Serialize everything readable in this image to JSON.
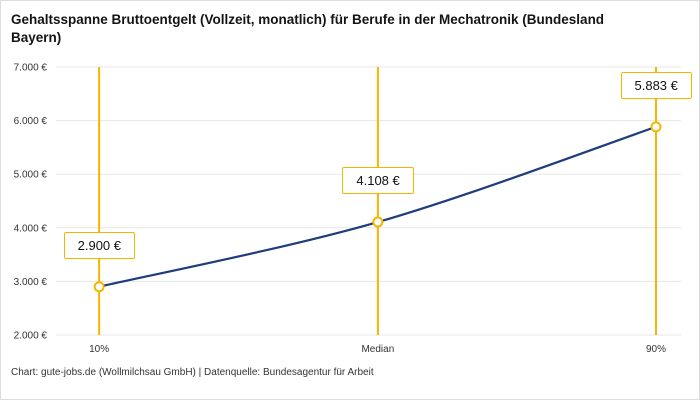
{
  "chart_data": {
    "type": "line",
    "title": "Gehaltsspanne Bruttoentgelt (Vollzeit, monatlich) für Berufe in der Mechatronik (Bundesland Bayern)",
    "categories": [
      "10%",
      "Median",
      "90%"
    ],
    "values": [
      2900,
      4108,
      5883
    ],
    "labels": [
      "2.900 €",
      "4.108 €",
      "5.883 €"
    ],
    "ylim": [
      2000,
      7000
    ],
    "ytick_step": 1000,
    "ytick_suffix": " €",
    "grid": "horizontal",
    "legend": "none",
    "xlabel": "",
    "ylabel": "",
    "colors": {
      "line": "#1F3D7A",
      "marker": "#F7B500",
      "vline": "#F7B500",
      "grid": "#E7E7E7",
      "label_border": "#F7B500"
    }
  },
  "footer": {
    "attribution": "Chart: gute-jobs.de (Wollmilchsau GmbH) | Datenquelle: Bundesagentur für Arbeit"
  }
}
